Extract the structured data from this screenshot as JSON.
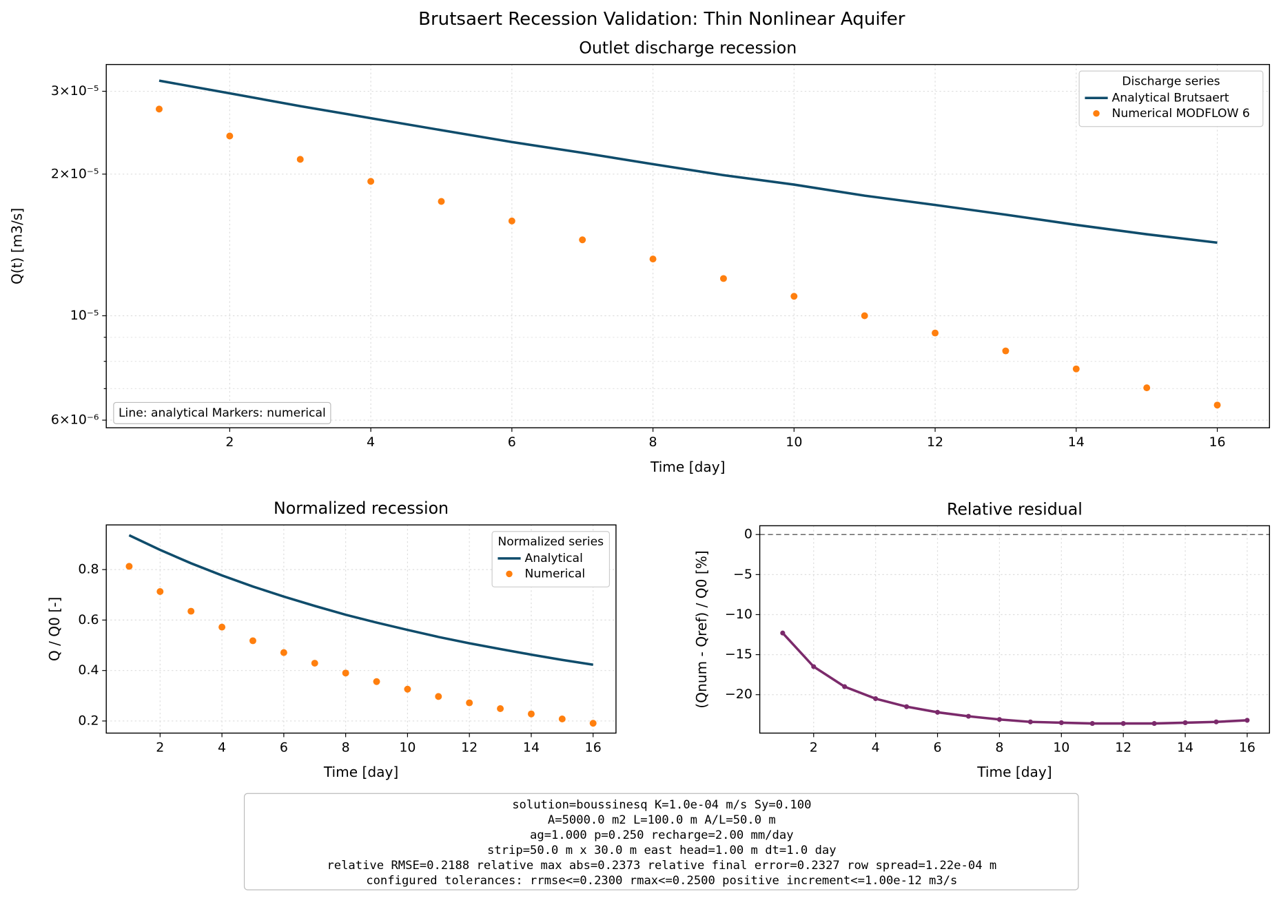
{
  "title": "Brutsaert Recession Validation: Thin Nonlinear Aquifer",
  "chart_data": [
    {
      "type": "line",
      "title": "Outlet discharge recession",
      "xlabel": "Time [day]",
      "ylabel": "Q(t) [m3/s]",
      "x": [
        1,
        2,
        3,
        4,
        5,
        6,
        7,
        8,
        9,
        10,
        11,
        12,
        13,
        14,
        15,
        16
      ],
      "series": [
        {
          "name": "Analytical Brutsaert",
          "style": "line",
          "color": "#0f4c6b",
          "values": [
            3.16e-05,
            2.97e-05,
            2.79e-05,
            2.63e-05,
            2.48e-05,
            2.34e-05,
            2.22e-05,
            2.1e-05,
            1.99e-05,
            1.9e-05,
            1.8e-05,
            1.72e-05,
            1.64e-05,
            1.56e-05,
            1.49e-05,
            1.43e-05
          ]
        },
        {
          "name": "Numerical MODFLOW 6",
          "style": "markers",
          "color": "#ff7f0e",
          "values": [
            2.75e-05,
            2.41e-05,
            2.15e-05,
            1.93e-05,
            1.75e-05,
            1.59e-05,
            1.45e-05,
            1.32e-05,
            1.2e-05,
            1.1e-05,
            1e-05,
            9.19e-06,
            8.42e-06,
            7.71e-06,
            7.03e-06,
            6.46e-06
          ]
        }
      ],
      "xlim": [
        0.25,
        16.74
      ],
      "xticks": [
        2,
        4,
        6,
        8,
        10,
        12,
        14,
        16
      ],
      "yscale": "log",
      "ylim": [
        5.78e-06,
        3.42e-05
      ],
      "yticks": [
        {
          "value": 6e-06,
          "label": "6×10⁻⁶"
        },
        {
          "value": 1e-05,
          "label": "10⁻⁵"
        },
        {
          "value": 2e-05,
          "label": "2×10⁻⁵"
        },
        {
          "value": 3e-05,
          "label": "3×10⁻⁵"
        }
      ],
      "yminor_ticks": [
        7e-06,
        8e-06,
        9e-06
      ],
      "grid": true,
      "legend": {
        "title": "Discharge series",
        "loc": "upper right"
      },
      "annotation": "Line: analytical   Markers: numerical"
    },
    {
      "type": "line",
      "title": "Normalized recession",
      "xlabel": "Time [day]",
      "ylabel": "Q / Q0 [-]",
      "x": [
        1,
        2,
        3,
        4,
        5,
        6,
        7,
        8,
        9,
        10,
        11,
        12,
        13,
        14,
        15,
        16
      ],
      "series": [
        {
          "name": "Analytical",
          "style": "line",
          "color": "#0f4c6b",
          "values": [
            0.936,
            0.878,
            0.825,
            0.777,
            0.733,
            0.693,
            0.656,
            0.621,
            0.59,
            0.561,
            0.533,
            0.508,
            0.485,
            0.463,
            0.442,
            0.423
          ]
        },
        {
          "name": "Numerical",
          "style": "markers",
          "color": "#ff7f0e",
          "values": [
            0.813,
            0.713,
            0.635,
            0.572,
            0.518,
            0.471,
            0.429,
            0.39,
            0.356,
            0.326,
            0.297,
            0.272,
            0.249,
            0.228,
            0.208,
            0.191
          ]
        }
      ],
      "xlim": [
        0.26,
        16.74
      ],
      "xticks": [
        2,
        4,
        6,
        8,
        10,
        12,
        14,
        16
      ],
      "ylim": [
        0.152,
        0.977
      ],
      "yticks": [
        0.2,
        0.4,
        0.6,
        0.8
      ],
      "grid": true,
      "legend": {
        "title": "Normalized series",
        "loc": "upper right"
      }
    },
    {
      "type": "line",
      "title": "Relative residual",
      "xlabel": "Time [day]",
      "ylabel": "(Qnum - Qref) / Q0 [%]",
      "x": [
        1,
        2,
        3,
        4,
        5,
        6,
        7,
        8,
        9,
        10,
        11,
        12,
        13,
        14,
        15,
        16
      ],
      "series": [
        {
          "style": "line+markers",
          "color": "#7b2a6b",
          "values": [
            -12.3,
            -16.5,
            -19.0,
            -20.5,
            -21.5,
            -22.2,
            -22.7,
            -23.1,
            -23.4,
            -23.5,
            -23.6,
            -23.6,
            -23.6,
            -23.5,
            -23.4,
            -23.2
          ]
        }
      ],
      "reference_line": {
        "value": 0,
        "color": "#666666"
      },
      "xlim": [
        0.26,
        16.72
      ],
      "xticks": [
        2,
        4,
        6,
        8,
        10,
        12,
        14,
        16
      ],
      "ylim": [
        -24.8,
        1.1
      ],
      "yticks": [
        {
          "value": -20,
          "label": "−20"
        },
        {
          "value": -15,
          "label": "−15"
        },
        {
          "value": -10,
          "label": "−10"
        },
        {
          "value": -5,
          "label": "−5"
        },
        0
      ],
      "grid": true
    }
  ],
  "parameters": [
    "solution=boussinesq   K=1.0e-04 m/s   Sy=0.100",
    "A=5000.0 m2   L=100.0 m   A/L=50.0 m",
    "ag=1.000   p=0.250   recharge=2.00 mm/day",
    "strip=50.0 m x 30.0 m   east head=1.00 m   dt=1.0 day",
    "relative RMSE=0.2188   relative max abs=0.2373   relative final error=0.2327   row spread=1.22e-04 m",
    "configured tolerances: rrmse<=0.2300   rmax<=0.2500   positive increment<=1.00e-12 m3/s"
  ]
}
